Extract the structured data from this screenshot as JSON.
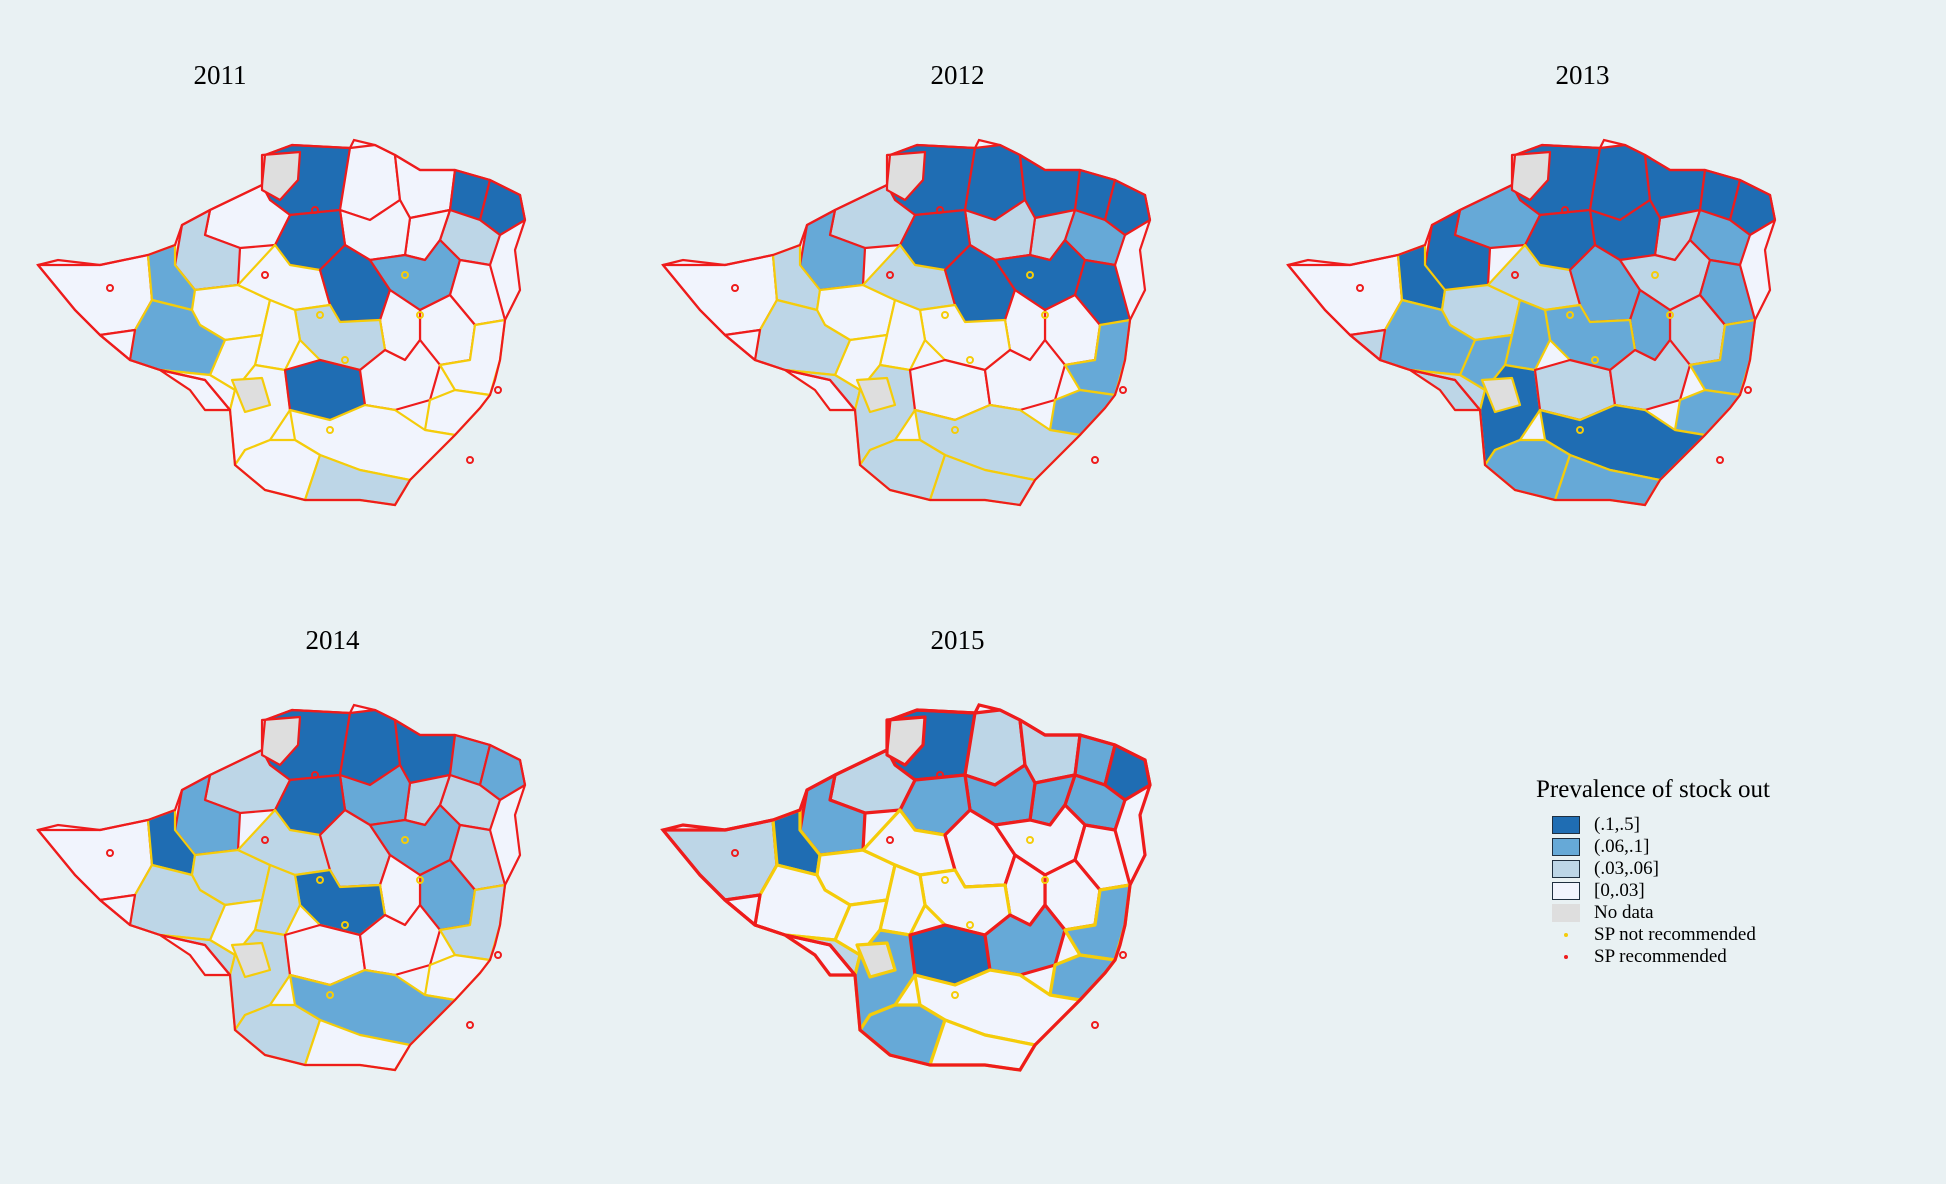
{
  "figure": {
    "background": "#e9f1f3"
  },
  "colors": {
    "c4": "#1f6db3",
    "c3": "#66a9d7",
    "c2": "#bdd6e7",
    "c1": "#f1f4fd",
    "nodata": "#dedede",
    "sp_recommended": "#ee1c1c",
    "sp_not_recommended": "#f5cc0a"
  },
  "panels": [
    {
      "year": "2011"
    },
    {
      "year": "2012"
    },
    {
      "year": "2013"
    },
    {
      "year": "2014"
    },
    {
      "year": "2015"
    }
  ],
  "legend": {
    "title": "Prevalence of stock out",
    "items": [
      {
        "label": "(.1,.5]",
        "category": "c4"
      },
      {
        "label": "(.06,.1]",
        "category": "c3"
      },
      {
        "label": "(.03,.06]",
        "category": "c2"
      },
      {
        "label": "[0,.03]",
        "category": "c1"
      },
      {
        "label": "No data",
        "category": "nodata"
      }
    ],
    "markers": [
      {
        "label": "SP not recommended",
        "color_key": "sp_not_recommended"
      },
      {
        "label": "SP recommended",
        "color_key": "sp_recommended"
      }
    ]
  },
  "chart_data": {
    "type": "choropleth",
    "region": "Zimbabwe districts",
    "legend_title": "Prevalence of stock out",
    "categories": [
      "(.1,.5]",
      "(.06,.1]",
      "(.03,.06]",
      "[0,.03]",
      "No data"
    ],
    "marker_categories": [
      "SP not recommended",
      "SP recommended"
    ],
    "panels": [
      "2011",
      "2012",
      "2013",
      "2014",
      "2015"
    ],
    "district_classes": {
      "2011": [
        "c1",
        "c4",
        "c1",
        "c1",
        "c4",
        "c4",
        "c2",
        "c1",
        "c1",
        "c4",
        "c1",
        "c2",
        "c3",
        "c1",
        "c1",
        "c4",
        "c3",
        "c1",
        "c1",
        "c1",
        "c2",
        "c1",
        "c1",
        "c3",
        "c1",
        "c1",
        "c4",
        "c1",
        "c1",
        "c1",
        "c1",
        "c1",
        "c2",
        "c1",
        "c1",
        "nodata",
        "nodata"
      ],
      "2012": [
        "c1",
        "c4",
        "c4",
        "c4",
        "c4",
        "c4",
        "c3",
        "c2",
        "c2",
        "c4",
        "c2",
        "c3",
        "c2",
        "c1",
        "c2",
        "c4",
        "c4",
        "c4",
        "c1",
        "c1",
        "c1",
        "c1",
        "c1",
        "c2",
        "c2",
        "c2",
        "c1",
        "c1",
        "c3",
        "c3",
        "c2",
        "c2",
        "c2",
        "c1",
        "c1",
        "nodata",
        "nodata"
      ],
      "2013": [
        "c1",
        "c4",
        "c4",
        "c4",
        "c4",
        "c4",
        "c3",
        "c2",
        "c4",
        "c4",
        "c3",
        "c4",
        "c4",
        "c2",
        "c2",
        "c3",
        "c2",
        "c3",
        "c2",
        "c3",
        "c3",
        "c3",
        "c3",
        "c3",
        "c2",
        "c4",
        "c2",
        "c2",
        "c3",
        "c3",
        "c4",
        "c3",
        "c3",
        "c2",
        "c2",
        "nodata",
        "nodata"
      ],
      "2014": [
        "c1",
        "c4",
        "c4",
        "c4",
        "c3",
        "c3",
        "c2",
        "c2",
        "c3",
        "c4",
        "c2",
        "c3",
        "c4",
        "c2",
        "c2",
        "c2",
        "c3",
        "c2",
        "c3",
        "c1",
        "c4",
        "c2",
        "c1",
        "c2",
        "c2",
        "c2",
        "c1",
        "c1",
        "c2",
        "c1",
        "c3",
        "c2",
        "c1",
        "c1",
        "c1",
        "nodata",
        "nodata"
      ],
      "2015": [
        "c2",
        "c4",
        "c2",
        "c2",
        "c3",
        "c4",
        "c3",
        "c3",
        "c3",
        "c3",
        "c2",
        "c3",
        "c4",
        "c1",
        "c1",
        "c1",
        "c1",
        "c1",
        "c1",
        "c1",
        "c1",
        "c1",
        "c1",
        "c1",
        "c2",
        "c3",
        "c4",
        "c3",
        "c3",
        "c3",
        "c1",
        "c3",
        "c1",
        "c1",
        "c1",
        "nodata",
        "nodata"
      ]
    },
    "district_sp": {
      "2011": [
        "R",
        "R",
        "R",
        "R",
        "R",
        "R",
        "R",
        "R",
        "R",
        "R",
        "R",
        "R",
        "Y",
        "Y",
        "Y",
        "R",
        "R",
        "R",
        "R",
        "R",
        "Y",
        "Y",
        "Y",
        "Y",
        "Y",
        "Y",
        "R",
        "R",
        "Y",
        "Y",
        "Y",
        "Y",
        "Y",
        "R",
        "R",
        "R",
        "Y"
      ],
      "2012": [
        "R",
        "R",
        "R",
        "R",
        "R",
        "R",
        "R",
        "R",
        "R",
        "R",
        "R",
        "R",
        "Y",
        "Y",
        "Y",
        "R",
        "R",
        "R",
        "R",
        "R",
        "Y",
        "Y",
        "Y",
        "Y",
        "Y",
        "Y",
        "R",
        "R",
        "Y",
        "Y",
        "Y",
        "Y",
        "Y",
        "R",
        "R",
        "R",
        "Y"
      ],
      "2013": [
        "R",
        "R",
        "R",
        "R",
        "R",
        "R",
        "R",
        "R",
        "R",
        "R",
        "R",
        "R",
        "Y",
        "Y",
        "Y",
        "R",
        "R",
        "R",
        "R",
        "R",
        "Y",
        "Y",
        "Y",
        "Y",
        "Y",
        "Y",
        "R",
        "R",
        "Y",
        "Y",
        "Y",
        "Y",
        "Y",
        "R",
        "R",
        "R",
        "Y"
      ],
      "2014": [
        "R",
        "R",
        "R",
        "R",
        "R",
        "R",
        "R",
        "R",
        "R",
        "R",
        "R",
        "R",
        "Y",
        "Y",
        "Y",
        "R",
        "R",
        "R",
        "R",
        "R",
        "Y",
        "Y",
        "Y",
        "Y",
        "Y",
        "Y",
        "R",
        "R",
        "Y",
        "Y",
        "Y",
        "Y",
        "Y",
        "R",
        "R",
        "R",
        "Y"
      ],
      "2015": [
        "R",
        "R",
        "R",
        "R",
        "R",
        "R",
        "R",
        "R",
        "R",
        "R",
        "R",
        "R",
        "Y",
        "Y",
        "Y",
        "R",
        "R",
        "R",
        "R",
        "R",
        "Y",
        "Y",
        "Y",
        "Y",
        "Y",
        "Y",
        "R",
        "R",
        "Y",
        "Y",
        "Y",
        "Y",
        "Y",
        "R",
        "R",
        "R",
        "Y"
      ]
    }
  }
}
